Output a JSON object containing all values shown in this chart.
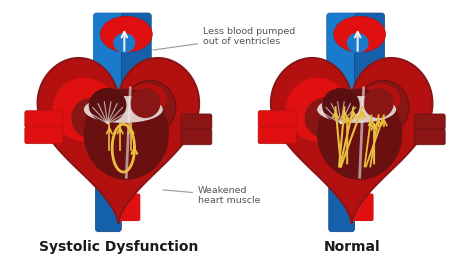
{
  "background_color": "#ffffff",
  "label_left": "Systolic Dysfunction",
  "label_right": "Normal",
  "annotation_top": "Less blood pumped\nout of ventricles",
  "annotation_bottom": "Weakened\nheart muscle",
  "label_fontsize": 10,
  "annotation_fontsize": 6.8,
  "fig_width": 4.74,
  "fig_height": 2.63,
  "dpi": 100,
  "colors": {
    "bright_red": "#e01010",
    "mid_red": "#b51010",
    "dark_red": "#8a1515",
    "deeper_red": "#6a1010",
    "brown_red": "#5a1010",
    "blue_bright": "#1a7acc",
    "blue_mid": "#1560aa",
    "blue_dark": "#0d4488",
    "white": "#ffffff",
    "off_white": "#f0ece8",
    "cream": "#e8ddd0",
    "yellow": "#e8c040",
    "gold": "#d4a820",
    "gray_text": "#555555",
    "black_text": "#1a1a1a",
    "shadow": "#3a0808"
  }
}
